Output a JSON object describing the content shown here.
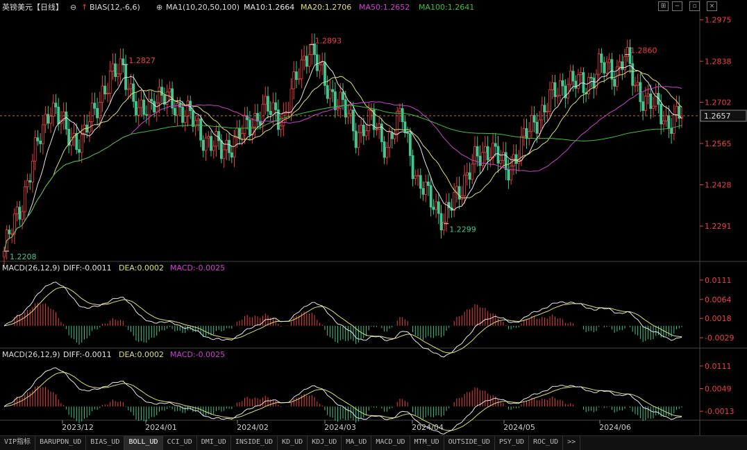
{
  "header": {
    "symbol": "英镑美元",
    "period": "【日线】",
    "bias_label": "BIAS(12,-6,6)",
    "ma_label": "MA1(10,20,50,100)",
    "ma10_label": "MA10:1.2664",
    "ma20_label": "MA20:1.2706",
    "ma50_label": "MA50:1.2652",
    "ma100_label": "MA100:1.2641"
  },
  "colors": {
    "up": "#f04040",
    "down": "#3cc890",
    "ma10": "#e8e8e8",
    "ma20": "#e0e070",
    "ma50": "#d040d0",
    "ma100": "#40c040",
    "dea": "#e0e070",
    "diff": "#e8e8e8"
  },
  "tabs": [
    "VIP指标",
    "BARUPDN_UD",
    "BIAS_UD",
    "BOLL_UD",
    "CCI_UD",
    "DMI_UD",
    "INSIDE_UD",
    "KD_UD",
    "KDJ_UD",
    "MA_UD",
    "MACD_UD",
    "MTM_UD",
    "OUTSIDE_UD",
    "PSY_UD",
    "ROC_UD",
    ">>"
  ],
  "active_tab": 3,
  "chart_data": [
    {
      "type": "candlestick",
      "y_ticks": [
        "1.2975",
        "1.2838",
        "1.2702",
        "1.2565",
        "1.2428",
        "1.2291"
      ],
      "ylim": [
        1.219,
        1.2995
      ],
      "current_price": "1.2657",
      "x_ticks": [
        "2023/12",
        "2024/01",
        "2024/02",
        "2024/03",
        "2024/04",
        "2024/05",
        "2024/06"
      ],
      "annotations": [
        {
          "label": "1.2208",
          "type": "low"
        },
        {
          "label": "1.2827",
          "type": "high"
        },
        {
          "label": "1.2893",
          "type": "high"
        },
        {
          "label": "1.2299",
          "type": "low"
        },
        {
          "label": "1.2860",
          "type": "high"
        }
      ],
      "series": [
        {
          "name": "MA10",
          "value": 1.2664
        },
        {
          "name": "MA20",
          "value": 1.2706
        },
        {
          "name": "MA50",
          "value": 1.2652
        },
        {
          "name": "MA100",
          "value": 1.2641
        }
      ]
    },
    {
      "type": "macd",
      "title": "MACD(26,12,9)",
      "diff_label": "DIFF:-0.0011",
      "dea_label": "DEA:0.0002",
      "macd_label": "MACD:-0.0025",
      "y_ticks": [
        "0.0111",
        "0.0064",
        "0.0018",
        "-0.0029"
      ]
    },
    {
      "type": "macd",
      "title": "MACD(26,12,9)",
      "diff_label": "DIFF:-0.0011",
      "dea_label": "DEA:0.0002",
      "macd_label": "MACD:-0.0025",
      "y_ticks": [
        "0.0111",
        "0.0049",
        "-0.0013"
      ]
    }
  ]
}
